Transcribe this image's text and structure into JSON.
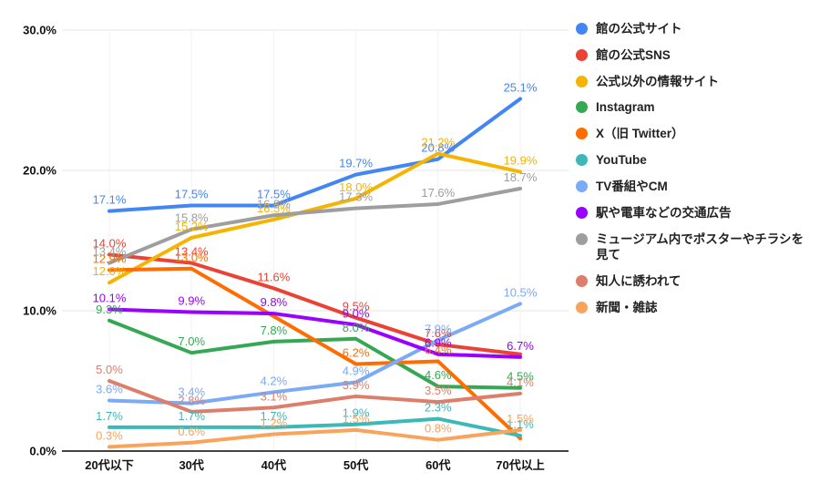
{
  "chart_data": {
    "type": "line",
    "title": "",
    "xlabel": "",
    "ylabel": "",
    "ylim": [
      0,
      30
    ],
    "grid": true,
    "legend_position": "right",
    "categories": [
      "20代以下",
      "30代",
      "40代",
      "50代",
      "60代",
      "70代以上"
    ],
    "y_ticks": [
      {
        "value": 0,
        "label": "0.0%"
      },
      {
        "value": 10,
        "label": "10.0%"
      },
      {
        "value": 20,
        "label": "20.0%"
      },
      {
        "value": 30,
        "label": "30.0%"
      }
    ],
    "series": [
      {
        "name": "館の公式サイト",
        "color": "#4285F4",
        "values": [
          17.1,
          17.5,
          17.5,
          19.7,
          20.8,
          25.1
        ],
        "labels": [
          "17.1%",
          "17.5%",
          "17.5%",
          "19.7%",
          "20.8%",
          "25.1%"
        ]
      },
      {
        "name": "館の公式SNS",
        "color": "#EA4335",
        "values": [
          14.0,
          13.4,
          11.6,
          9.5,
          7.6,
          6.9
        ],
        "labels": [
          "14.0%",
          "13.4%",
          "11.6%",
          "9.5%",
          "7.6%",
          ""
        ]
      },
      {
        "name": "公式以外の情報サイト",
        "color": "#F5B400",
        "values": [
          12.0,
          15.2,
          16.5,
          18.0,
          21.2,
          19.9
        ],
        "labels": [
          "12.0%",
          "15.2%",
          "16.5%",
          "18.0%",
          "21.2%",
          "19.9%"
        ]
      },
      {
        "name": "Instagram",
        "color": "#34A853",
        "values": [
          9.3,
          7.0,
          7.8,
          8.0,
          4.6,
          4.5
        ],
        "labels": [
          "9.3%",
          "7.0%",
          "7.8%",
          "8.0%",
          "4.6%",
          "4.5%"
        ]
      },
      {
        "name": "X（旧 Twitter）",
        "color": "#FF6D01",
        "values": [
          12.9,
          13.0,
          9.6,
          6.2,
          6.4,
          0.9
        ],
        "labels": [
          "12.9%",
          "13.0%",
          "",
          "6.2%",
          "6.4%",
          ""
        ]
      },
      {
        "name": "YouTube",
        "color": "#3CB8B8",
        "values": [
          1.7,
          1.7,
          1.7,
          1.9,
          2.3,
          1.1
        ],
        "labels": [
          "1.7%",
          "1.7%",
          "1.7%",
          "1.9%",
          "2.3%",
          "1.1%"
        ]
      },
      {
        "name": "TV番組やCM",
        "color": "#7BAAF7",
        "values": [
          3.6,
          3.4,
          4.2,
          4.9,
          7.9,
          10.5
        ],
        "labels": [
          "3.6%",
          "3.4%",
          "4.2%",
          "4.9%",
          "7.9%",
          "10.5%"
        ]
      },
      {
        "name": "駅や電車などの交通広告",
        "color": "#9900FF",
        "values": [
          10.1,
          9.9,
          9.8,
          9.0,
          6.9,
          6.7
        ],
        "labels": [
          "10.1%",
          "9.9%",
          "9.8%",
          "9.0%",
          "6.9%",
          "6.7%"
        ]
      },
      {
        "name": "ミュージアム内でポスターやチラシを見て",
        "color": "#9E9E9E",
        "values": [
          13.4,
          15.8,
          16.8,
          17.3,
          17.6,
          18.7
        ],
        "labels": [
          "13.4%",
          "15.8%",
          "16.8%",
          "17.3%",
          "17.6%",
          "18.7%"
        ]
      },
      {
        "name": "知人に誘われて",
        "color": "#DD7E6B",
        "values": [
          5.0,
          2.8,
          3.1,
          3.9,
          3.5,
          4.1
        ],
        "labels": [
          "5.0%",
          "2.8%",
          "3.1%",
          "3.9%",
          "3.5%",
          "4.1%"
        ]
      },
      {
        "name": "新聞・雑誌",
        "color": "#F9A35B",
        "values": [
          0.3,
          0.6,
          1.2,
          1.5,
          0.8,
          1.5
        ],
        "labels": [
          "0.3%",
          "0.6%",
          "1.2%",
          "1.5%",
          "0.8%",
          "1.5%"
        ]
      }
    ]
  }
}
